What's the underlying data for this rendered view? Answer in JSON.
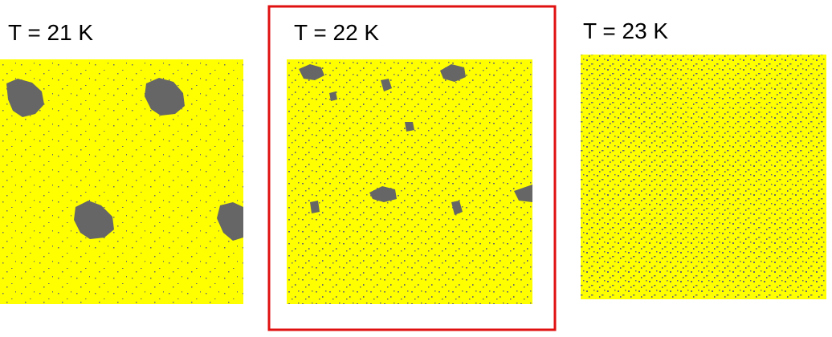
{
  "panels": [
    {
      "label": "T = 21 K"
    },
    {
      "label": "T = 22 K"
    },
    {
      "label": "T = 23 K"
    }
  ]
}
